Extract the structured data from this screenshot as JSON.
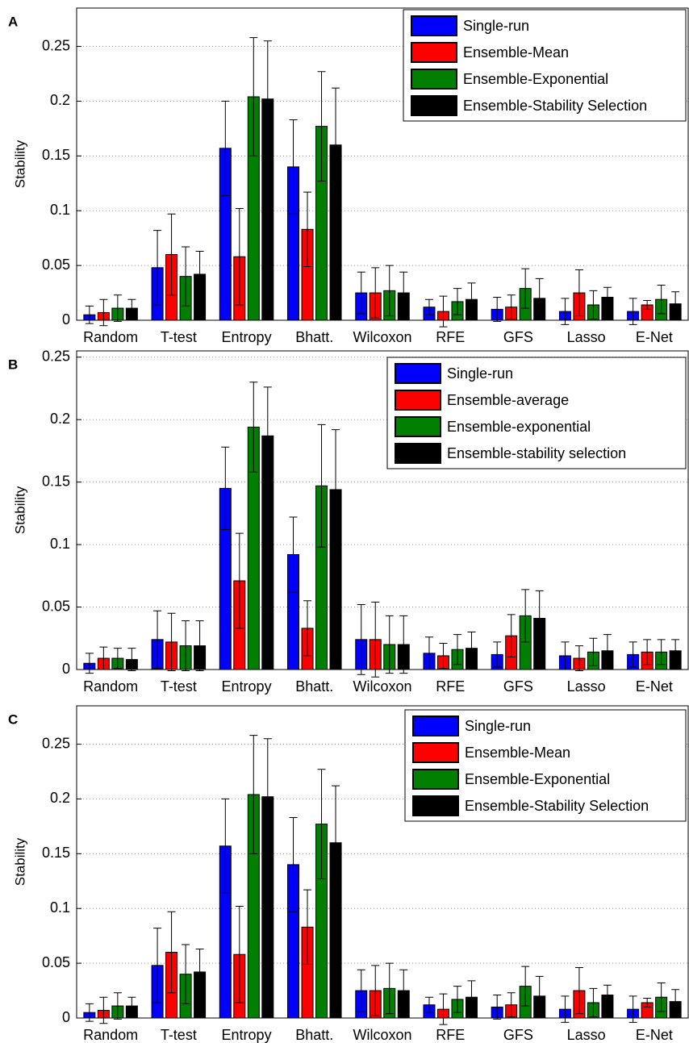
{
  "chart_data": [
    {
      "type": "bar",
      "panel": "A",
      "ylabel": "Stability",
      "categories": [
        "Random",
        "T-test",
        "Entropy",
        "Bhatt.",
        "Wilcoxon",
        "RFE",
        "GFS",
        "Lasso",
        "E-Net"
      ],
      "series": [
        {
          "name": "Single-run",
          "color": "#0000ff",
          "values": [
            0.005,
            0.048,
            0.157,
            0.14,
            0.025,
            0.012,
            0.01,
            0.008,
            0.008
          ],
          "errors": [
            0.008,
            0.034,
            0.043,
            0.043,
            0.019,
            0.007,
            0.011,
            0.012,
            0.012
          ]
        },
        {
          "name": "Ensemble-Mean",
          "color": "#ff0000",
          "values": [
            0.007,
            0.06,
            0.058,
            0.083,
            0.025,
            0.008,
            0.012,
            0.025,
            0.014
          ],
          "errors": [
            0.012,
            0.037,
            0.044,
            0.034,
            0.023,
            0.014,
            0.011,
            0.021,
            0.004
          ]
        },
        {
          "name": "Ensemble-Exponential",
          "color": "#007f00",
          "values": [
            0.011,
            0.04,
            0.204,
            0.177,
            0.027,
            0.017,
            0.029,
            0.014,
            0.019
          ],
          "errors": [
            0.012,
            0.027,
            0.054,
            0.05,
            0.023,
            0.012,
            0.018,
            0.013,
            0.013
          ]
        },
        {
          "name": "Ensemble-Stability Selection",
          "color": "#000000",
          "values": [
            0.011,
            0.042,
            0.202,
            0.16,
            0.025,
            0.019,
            0.02,
            0.021,
            0.015
          ],
          "errors": [
            0.008,
            0.021,
            0.053,
            0.052,
            0.019,
            0.015,
            0.018,
            0.009,
            0.011
          ]
        }
      ],
      "ylim": [
        0,
        0.285
      ],
      "yticks": [
        0,
        0.05,
        0.1,
        0.15,
        0.2,
        0.25
      ],
      "grid": true,
      "legend": "upper-right"
    },
    {
      "type": "bar",
      "panel": "B",
      "ylabel": "Stability",
      "categories": [
        "Random",
        "T-test",
        "Entropy",
        "Bhatt.",
        "Wilcoxon",
        "RFE",
        "GFS",
        "Lasso",
        "E-Net"
      ],
      "series": [
        {
          "name": "Single-run",
          "color": "#0000ff",
          "values": [
            0.005,
            0.024,
            0.145,
            0.092,
            0.024,
            0.013,
            0.012,
            0.011,
            0.012
          ],
          "errors": [
            0.008,
            0.023,
            0.033,
            0.03,
            0.028,
            0.013,
            0.01,
            0.011,
            0.01
          ]
        },
        {
          "name": "Ensemble-average",
          "color": "#ff0000",
          "values": [
            0.009,
            0.022,
            0.071,
            0.033,
            0.024,
            0.011,
            0.027,
            0.009,
            0.014
          ],
          "errors": [
            0.009,
            0.023,
            0.038,
            0.022,
            0.03,
            0.01,
            0.017,
            0.01,
            0.01
          ]
        },
        {
          "name": "Ensemble-exponential",
          "color": "#007f00",
          "values": [
            0.009,
            0.019,
            0.194,
            0.147,
            0.02,
            0.016,
            0.043,
            0.014,
            0.014
          ],
          "errors": [
            0.008,
            0.02,
            0.036,
            0.049,
            0.023,
            0.012,
            0.021,
            0.011,
            0.01
          ]
        },
        {
          "name": "Ensemble-stability selection",
          "color": "#000000",
          "values": [
            0.008,
            0.019,
            0.187,
            0.144,
            0.02,
            0.017,
            0.041,
            0.015,
            0.015
          ],
          "errors": [
            0.009,
            0.02,
            0.039,
            0.048,
            0.023,
            0.013,
            0.022,
            0.013,
            0.009
          ]
        }
      ],
      "ylim": [
        0,
        0.255
      ],
      "yticks": [
        0,
        0.05,
        0.1,
        0.15,
        0.2,
        0.25
      ],
      "grid": true,
      "legend": "upper-right"
    },
    {
      "type": "bar",
      "panel": "C",
      "ylabel": "Stability",
      "categories": [
        "Random",
        "T-test",
        "Entropy",
        "Bhatt.",
        "Wilcoxon",
        "RFE",
        "GFS",
        "Lasso",
        "E-Net"
      ],
      "series": [
        {
          "name": "Single-run",
          "color": "#0000ff",
          "values": [
            0.005,
            0.048,
            0.157,
            0.14,
            0.025,
            0.012,
            0.01,
            0.008,
            0.008
          ],
          "errors": [
            0.008,
            0.034,
            0.043,
            0.043,
            0.019,
            0.007,
            0.011,
            0.012,
            0.012
          ]
        },
        {
          "name": "Ensemble-Mean",
          "color": "#ff0000",
          "values": [
            0.007,
            0.06,
            0.058,
            0.083,
            0.025,
            0.008,
            0.012,
            0.025,
            0.014
          ],
          "errors": [
            0.012,
            0.037,
            0.044,
            0.034,
            0.023,
            0.014,
            0.011,
            0.021,
            0.004
          ]
        },
        {
          "name": "Ensemble-Exponential",
          "color": "#007f00",
          "values": [
            0.011,
            0.04,
            0.204,
            0.177,
            0.027,
            0.017,
            0.029,
            0.014,
            0.019
          ],
          "errors": [
            0.012,
            0.027,
            0.054,
            0.05,
            0.023,
            0.012,
            0.018,
            0.013,
            0.013
          ]
        },
        {
          "name": "Ensemble-Stability Selection",
          "color": "#000000",
          "values": [
            0.011,
            0.042,
            0.202,
            0.16,
            0.025,
            0.019,
            0.02,
            0.021,
            0.015
          ],
          "errors": [
            0.008,
            0.021,
            0.053,
            0.052,
            0.019,
            0.015,
            0.018,
            0.009,
            0.011
          ]
        }
      ],
      "ylim": [
        0,
        0.285
      ],
      "yticks": [
        0,
        0.05,
        0.1,
        0.15,
        0.2,
        0.25
      ],
      "grid": true,
      "legend": "upper-right"
    }
  ]
}
